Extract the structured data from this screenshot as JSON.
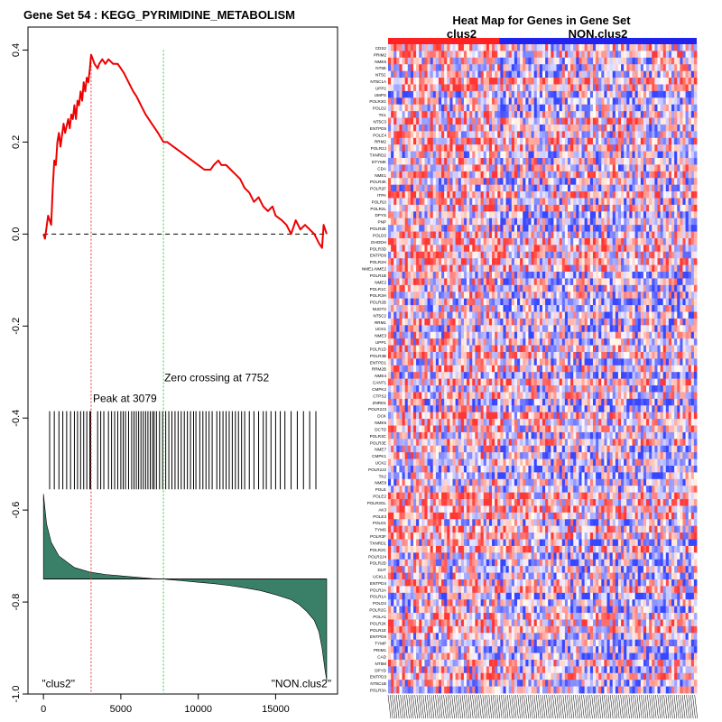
{
  "chart_data": [
    {
      "type": "line",
      "title": "Gene Set  54 : KEGG_PYRIMIDINE_METABOLISM",
      "xlabel": "",
      "ylabel": "",
      "xlim": [
        -1000,
        19000
      ],
      "ylim": [
        -1.0,
        0.45
      ],
      "x_ticks": [
        0,
        5000,
        10000,
        15000
      ],
      "y_ticks": [
        -1.0,
        -0.8,
        -0.6,
        -0.4,
        -0.2,
        0.0,
        0.2,
        0.4
      ],
      "x_tick_labels": [
        "0",
        "5000",
        "10000",
        "15000"
      ],
      "y_tick_labels": [
        "-1.0",
        "-0.8",
        "-0.6",
        "-0.4",
        "-0.2",
        "0.0",
        "0.2",
        "0.4"
      ],
      "enrichment_score": {
        "name": "running enrichment score",
        "color": "#ee0000",
        "x": [
          0,
          100,
          300,
          400,
          500,
          600,
          700,
          800,
          900,
          1000,
          1100,
          1300,
          1400,
          1600,
          1700,
          1800,
          1900,
          2000,
          2100,
          2200,
          2300,
          2400,
          2500,
          2600,
          2700,
          2800,
          2900,
          3000,
          3079,
          3300,
          3500,
          3600,
          3800,
          4000,
          4200,
          4500,
          4800,
          5000,
          5200,
          5500,
          5800,
          6000,
          6300,
          6600,
          7000,
          7400,
          7752,
          8000,
          8400,
          8800,
          9200,
          9600,
          10000,
          10400,
          10800,
          11000,
          11300,
          11500,
          11800,
          12100,
          12400,
          12700,
          13000,
          13300,
          13600,
          13900,
          14200,
          14500,
          14800,
          15000,
          15400,
          15700,
          16000,
          16300,
          16600,
          16900,
          17200,
          17500,
          17800,
          18000,
          18100,
          18300
        ],
        "y": [
          0.0,
          -0.01,
          0.04,
          0.03,
          0.02,
          0.1,
          0.16,
          0.15,
          0.2,
          0.22,
          0.19,
          0.24,
          0.22,
          0.25,
          0.23,
          0.26,
          0.25,
          0.28,
          0.25,
          0.29,
          0.28,
          0.31,
          0.29,
          0.33,
          0.31,
          0.34,
          0.33,
          0.36,
          0.39,
          0.37,
          0.36,
          0.37,
          0.38,
          0.37,
          0.38,
          0.37,
          0.37,
          0.36,
          0.35,
          0.33,
          0.31,
          0.3,
          0.28,
          0.26,
          0.24,
          0.22,
          0.2,
          0.2,
          0.19,
          0.18,
          0.17,
          0.16,
          0.15,
          0.14,
          0.14,
          0.15,
          0.16,
          0.15,
          0.15,
          0.14,
          0.13,
          0.12,
          0.1,
          0.09,
          0.07,
          0.08,
          0.06,
          0.05,
          0.06,
          0.04,
          0.03,
          0.02,
          0.0,
          0.03,
          0.01,
          0.02,
          0.01,
          0.0,
          -0.02,
          -0.03,
          0.02,
          0.0
        ]
      },
      "zero_line": 0.0,
      "peak": {
        "x": 3079,
        "label": "Peak at 3079",
        "color": "#ee3333"
      },
      "zero_crossing": {
        "x": 7752,
        "label": "Zero crossing at 7752",
        "color": "#33cc33"
      },
      "hit_positions": [
        400,
        700,
        1000,
        1250,
        1500,
        1750,
        2000,
        2200,
        2400,
        2600,
        2800,
        3000,
        3050,
        3500,
        3700,
        3900,
        4200,
        4400,
        4600,
        4800,
        5000,
        5150,
        5300,
        5500,
        5700,
        5850,
        6000,
        6150,
        6300,
        6450,
        6600,
        6750,
        6900,
        7050,
        7150,
        7300,
        7500,
        7700,
        7900,
        8100,
        8300,
        8500,
        8700,
        8900,
        9100,
        9300,
        9500,
        9700,
        9850,
        10100,
        10300,
        10500,
        10700,
        10900,
        11200,
        11400,
        11600,
        11800,
        12000,
        12200,
        12400,
        12600,
        12800,
        13000,
        13300,
        13600,
        13900,
        14200,
        14400,
        14700,
        15000,
        15300,
        15600,
        16000,
        16400,
        16800,
        17200,
        17600
      ],
      "ranked_metric": {
        "name": "ranked list metric",
        "color": "#3a8068",
        "x": [
          0,
          200,
          500,
          1000,
          2000,
          3000,
          4000,
          5000,
          6000,
          7000,
          7752,
          8000,
          9000,
          10000,
          11000,
          12000,
          13000,
          14000,
          15000,
          16000,
          16500,
          17000,
          17500,
          17800,
          18000,
          18200,
          18300
        ],
        "y": [
          -0.565,
          -0.63,
          -0.67,
          -0.7,
          -0.725,
          -0.735,
          -0.74,
          -0.743,
          -0.746,
          -0.749,
          -0.75,
          -0.751,
          -0.754,
          -0.757,
          -0.76,
          -0.764,
          -0.769,
          -0.775,
          -0.784,
          -0.795,
          -0.805,
          -0.82,
          -0.84,
          -0.865,
          -0.9,
          -0.95,
          -0.97
        ],
        "baseline": -0.75
      },
      "left_label": "\"clus2\"",
      "right_label": "\"NON.clus2\""
    },
    {
      "type": "heatmap",
      "title": "Heat Map for Genes in Gene Set",
      "groups": [
        {
          "label": "clus2",
          "color": "#ff2222",
          "fraction": 0.36
        },
        {
          "label": "NON.clus2",
          "color": "#2222ee",
          "fraction": 0.64
        }
      ],
      "genes": [
        "CDS2",
        "PRIM2",
        "NME6",
        "NT5E",
        "NT5C",
        "NT5C1A",
        "UPP2",
        "UMPS",
        "POLR3G",
        "POLD2",
        "TK1",
        "NT5C3",
        "ENTPD5",
        "POLE4",
        "RRM2",
        "POLR2J",
        "TXNRD2",
        "DTYMK",
        "CDA",
        "NME1",
        "POLR3K",
        "POLR2F",
        "ITPA",
        "POLR2I",
        "POLR2L",
        "DPYS",
        "PNP",
        "POLR2E",
        "POLD3",
        "DHODH",
        "POLR3D",
        "ENTPD6",
        "POLR2H",
        "NME1-NME2",
        "POLR1B",
        "NME2",
        "POLR1C",
        "POLR3H",
        "POLR2B",
        "NUDT2",
        "NT5C2",
        "RRM1",
        "UCK1",
        "NME3",
        "UPP1",
        "POLR1D",
        "POLR3B",
        "ENTPD1",
        "RRM2B",
        "NME4",
        "CANT1",
        "CMPK2",
        "CTPS2",
        "ZNRD1",
        "POLR2J3",
        "DCK",
        "NME5",
        "DCTD",
        "POLR3C",
        "POLR3E",
        "NME7",
        "CMPK1",
        "UCK2",
        "POLR2J2",
        "TK2",
        "NME8",
        "POLE",
        "POLE2",
        "POLR3GL",
        "AK3",
        "POLE3",
        "POLD1",
        "TYMS",
        "POLR3F",
        "TXNRD1",
        "POLR2C",
        "POLR2J4",
        "POLR2D",
        "DUT",
        "UCKL1",
        "ENTPD4",
        "POLR2A",
        "POLR1A",
        "POLD4",
        "POLR2G",
        "POLA1",
        "POLR2K",
        "POLR1E",
        "ENTPD8",
        "TYMP",
        "PRIM1",
        "CAD",
        "NT5M",
        "DPYD",
        "ENTPD3",
        "NT5C1B",
        "POLR3A"
      ]
    }
  ]
}
